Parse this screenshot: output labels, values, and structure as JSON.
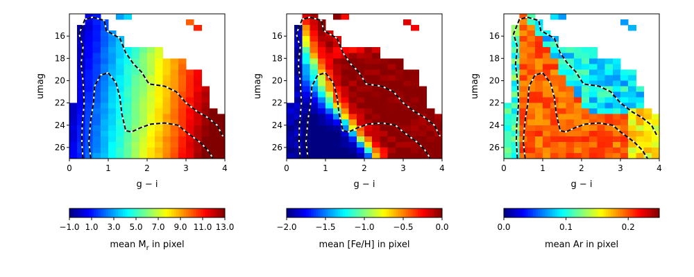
{
  "chart_data": [
    {
      "type": "heatmap",
      "xlabel": "g − i",
      "ylabel": "umag",
      "x_ticks": [
        "0",
        "1",
        "2",
        "3",
        "4"
      ],
      "y_ticks": [
        "16",
        "18",
        "20",
        "22",
        "24",
        "26"
      ],
      "xlim": [
        0,
        4
      ],
      "ylim": [
        27,
        14
      ],
      "colorbar": {
        "label_text": "mean M",
        "label_sub": "r",
        "label_suffix": " in pixel",
        "range": [
          -1.0,
          13.0
        ],
        "ticks": [
          "−1.0",
          "1.0",
          "3.0",
          "5.0",
          "7.0",
          "9.0",
          "11.0",
          "13.0"
        ],
        "colormap": "jet"
      },
      "mean_value_description": "mean absolute magnitude increases with g − i (about 1 at g − i = 0.3, about 6 at 1.3, about 9 at 2.3, about 12.5 at 3.5)"
    },
    {
      "type": "heatmap",
      "xlabel": "g − i",
      "ylabel": "umag",
      "x_ticks": [
        "0",
        "1",
        "2",
        "3",
        "4"
      ],
      "y_ticks": [
        "16",
        "18",
        "20",
        "22",
        "24",
        "26"
      ],
      "xlim": [
        0,
        4
      ],
      "ylim": [
        27,
        14
      ],
      "colorbar": {
        "label_text": "mean [Fe/H] in pixel",
        "label_sub": "",
        "label_suffix": "",
        "range": [
          -2.0,
          0.0
        ],
        "ticks": [
          "−2.0",
          "−1.5",
          "−1.0",
          "−0.5",
          "0.0"
        ],
        "colormap": "jet"
      },
      "mean_value_description": "metal-rich (about −0.3) above the dashed locus, metal-poor (about −1.6) at faint magnitudes below it"
    },
    {
      "type": "heatmap",
      "xlabel": "g − i",
      "ylabel": "umag",
      "x_ticks": [
        "0",
        "1",
        "2",
        "3",
        "4"
      ],
      "y_ticks": [
        "16",
        "18",
        "20",
        "22",
        "24",
        "26"
      ],
      "xlim": [
        0,
        4
      ],
      "ylim": [
        27,
        14
      ],
      "colorbar": {
        "label_text": "mean Ar in pixel",
        "label_sub": "",
        "label_suffix": "",
        "range": [
          0.0,
          0.25
        ],
        "ticks": [
          "0.0",
          "0.1",
          "0.2"
        ],
        "colormap": "jet"
      },
      "mean_value_description": "mostly about 0.19–0.2 inside the populated region, lower (about 0.08–0.12) at red colours and bright magnitudes"
    }
  ],
  "contour_style": "black dashed with white gaps"
}
